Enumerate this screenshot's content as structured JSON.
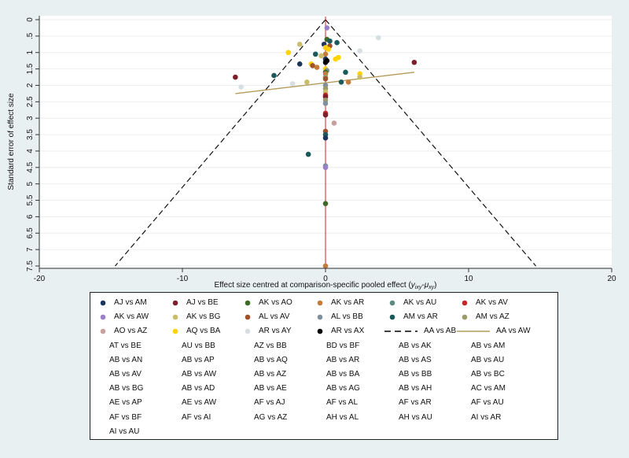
{
  "chart_data": {
    "type": "scatter",
    "title": "",
    "xlabel_prefix": "Effect size centred at comparison-specific pooled effect (",
    "xlabel_math": "y",
    "xlabel_sub1": "ixy",
    "xlabel_minus": "-",
    "xlabel_mu": "μ",
    "xlabel_sub2": "xy",
    "xlabel_suffix": ")",
    "ylabel": "Standard error of effect size",
    "xlim": [
      -20,
      20
    ],
    "ylim": [
      7.5,
      0
    ],
    "x_ticks": [
      -20,
      -10,
      0,
      10,
      20
    ],
    "y_ticks": [
      "0",
      ".5",
      "1",
      "1.5",
      "2",
      "2.5",
      "3",
      "3.5",
      "4",
      "4.5",
      "5",
      "5.5",
      "6",
      "6.5",
      "7",
      "7.5"
    ],
    "grid": "horizontal",
    "reference_line_x": 0,
    "funnel": {
      "apex": [
        0,
        0
      ],
      "base_left": [
        -14.7,
        7.5
      ],
      "base_right": [
        14.7,
        7.5
      ]
    },
    "regression_line": {
      "x": [
        -6.3,
        6.2
      ],
      "y": [
        2.25,
        1.6
      ]
    },
    "points": [
      {
        "x": 0.1,
        "y": 0.25,
        "c": "#9b7fc9"
      },
      {
        "x": 3.7,
        "y": 0.55,
        "c": "#d7dfe2"
      },
      {
        "x": 0.1,
        "y": 0.6,
        "c": "#3d6a25"
      },
      {
        "x": 0.3,
        "y": 0.65,
        "c": "#1a5a5a"
      },
      {
        "x": 0.8,
        "y": 0.7,
        "c": "#1a5a5a"
      },
      {
        "x": -0.1,
        "y": 0.75,
        "c": "#1b365d"
      },
      {
        "x": -1.8,
        "y": 0.75,
        "c": "#c9bd6a"
      },
      {
        "x": 0.3,
        "y": 0.8,
        "c": "#a0522d"
      },
      {
        "x": 0.0,
        "y": 0.85,
        "c": "#ffd200"
      },
      {
        "x": 0.2,
        "y": 0.9,
        "c": "#ffd200"
      },
      {
        "x": 2.4,
        "y": 0.95,
        "c": "#d7dfe2"
      },
      {
        "x": -2.6,
        "y": 1.0,
        "c": "#ffd200"
      },
      {
        "x": -0.7,
        "y": 1.05,
        "c": "#1a5a5a"
      },
      {
        "x": 0.0,
        "y": 1.05,
        "c": "#c47c3a"
      },
      {
        "x": -0.3,
        "y": 1.1,
        "c": "#c9bd6a"
      },
      {
        "x": 0.7,
        "y": 1.2,
        "c": "#ffd200"
      },
      {
        "x": 0.9,
        "y": 1.15,
        "c": "#ffd200"
      },
      {
        "x": 0.0,
        "y": 1.2,
        "c": "#1b365d"
      },
      {
        "x": 0.1,
        "y": 1.25,
        "c": "#000000"
      },
      {
        "x": 6.2,
        "y": 1.3,
        "c": "#7a1f2b"
      },
      {
        "x": 0.0,
        "y": 1.3,
        "c": "#000000"
      },
      {
        "x": -1.8,
        "y": 1.35,
        "c": "#1b365d"
      },
      {
        "x": -1.0,
        "y": 1.35,
        "c": "#ffd200"
      },
      {
        "x": -0.9,
        "y": 1.4,
        "c": "#a0522d"
      },
      {
        "x": -0.6,
        "y": 1.45,
        "c": "#c47c3a"
      },
      {
        "x": 0.0,
        "y": 1.5,
        "c": "#ffd200"
      },
      {
        "x": 0.1,
        "y": 1.55,
        "c": "#7e8f9e"
      },
      {
        "x": 1.4,
        "y": 1.6,
        "c": "#1a5a5a"
      },
      {
        "x": 0.0,
        "y": 1.6,
        "c": "#3d6a25"
      },
      {
        "x": 0.0,
        "y": 1.65,
        "c": "#c47c3a"
      },
      {
        "x": 2.4,
        "y": 1.65,
        "c": "#ffd200"
      },
      {
        "x": -3.6,
        "y": 1.7,
        "c": "#1a5a5a"
      },
      {
        "x": -6.3,
        "y": 1.75,
        "c": "#7a1f2b"
      },
      {
        "x": 0.0,
        "y": 1.75,
        "c": "#9b9b6a"
      },
      {
        "x": 2.4,
        "y": 1.75,
        "c": "#c9bd6a"
      },
      {
        "x": 0.0,
        "y": 1.8,
        "c": "#a0522d"
      },
      {
        "x": -1.3,
        "y": 1.9,
        "c": "#c9bd6a"
      },
      {
        "x": 1.1,
        "y": 1.9,
        "c": "#1a5a5a"
      },
      {
        "x": 1.6,
        "y": 1.9,
        "c": "#c47c3a"
      },
      {
        "x": -2.3,
        "y": 1.95,
        "c": "#d7dfe2"
      },
      {
        "x": -5.9,
        "y": 2.05,
        "c": "#d7dfe2"
      },
      {
        "x": 0.0,
        "y": 2.0,
        "c": "#7e8f9e"
      },
      {
        "x": 0.0,
        "y": 2.1,
        "c": "#9b9b6a"
      },
      {
        "x": 0.0,
        "y": 2.2,
        "c": "#c9bd6a"
      },
      {
        "x": 0.0,
        "y": 2.3,
        "c": "#c62828"
      },
      {
        "x": 0.0,
        "y": 2.35,
        "c": "#7a1f2b"
      },
      {
        "x": 0.0,
        "y": 2.45,
        "c": "#9b9b6a"
      },
      {
        "x": 0.0,
        "y": 2.55,
        "c": "#7e8f9e"
      },
      {
        "x": 0.0,
        "y": 2.85,
        "c": "#c62828"
      },
      {
        "x": 0.0,
        "y": 2.9,
        "c": "#7a1f2b"
      },
      {
        "x": 0.6,
        "y": 3.15,
        "c": "#c9a0a0"
      },
      {
        "x": 0.0,
        "y": 3.4,
        "c": "#a0522d"
      },
      {
        "x": 0.0,
        "y": 3.5,
        "c": "#1a5a5a"
      },
      {
        "x": 0.0,
        "y": 3.6,
        "c": "#1b365d"
      },
      {
        "x": -1.2,
        "y": 4.1,
        "c": "#1a5a5a"
      },
      {
        "x": 0.0,
        "y": 4.45,
        "c": "#7e8f9e"
      },
      {
        "x": 0.0,
        "y": 4.5,
        "c": "#9b7fc9"
      },
      {
        "x": 0.0,
        "y": 5.6,
        "c": "#3d6a25"
      },
      {
        "x": 0.0,
        "y": 7.5,
        "c": "#c47c3a"
      }
    ],
    "legend": [
      {
        "label": "AJ vs AM",
        "kind": "dot",
        "color": "#1b365d"
      },
      {
        "label": "AJ vs BE",
        "kind": "dot",
        "color": "#7a1f2b"
      },
      {
        "label": "AK vs AO",
        "kind": "dot",
        "color": "#3d6a25"
      },
      {
        "label": "AK vs AR",
        "kind": "dot",
        "color": "#c47c3a"
      },
      {
        "label": "AK vs AU",
        "kind": "dot",
        "color": "#5f8a82"
      },
      {
        "label": "AK vs AV",
        "kind": "dot",
        "color": "#c62828"
      },
      {
        "label": "AK vs AW",
        "kind": "dot",
        "color": "#9b7fc9"
      },
      {
        "label": "AK vs BG",
        "kind": "dot",
        "color": "#c9bd6a"
      },
      {
        "label": "AL vs AV",
        "kind": "dot",
        "color": "#a0522d"
      },
      {
        "label": "AL vs BB",
        "kind": "dot",
        "color": "#7e8f9e"
      },
      {
        "label": "AM vs AR",
        "kind": "dot",
        "color": "#1a5a5a"
      },
      {
        "label": "AM vs AZ",
        "kind": "dot",
        "color": "#9b9b6a"
      },
      {
        "label": "AO vs AZ",
        "kind": "dot",
        "color": "#c9a0a0"
      },
      {
        "label": "AQ vs BA",
        "kind": "dot",
        "color": "#ffd200"
      },
      {
        "label": "AR vs AY",
        "kind": "dot",
        "color": "#d7dfe2"
      },
      {
        "label": "AR vs AX",
        "kind": "dot",
        "color": "#000000"
      },
      {
        "label": "AA vs AB",
        "kind": "dash",
        "color": "#000000"
      },
      {
        "label": "AA vs AW",
        "kind": "line",
        "color": "#b39b5a"
      },
      {
        "label": "AT vs BE",
        "kind": "none"
      },
      {
        "label": "AU vs BB",
        "kind": "none"
      },
      {
        "label": "AZ vs BB",
        "kind": "none"
      },
      {
        "label": "BD vs BF",
        "kind": "none"
      },
      {
        "label": "AB vs AK",
        "kind": "none"
      },
      {
        "label": "AB vs AM",
        "kind": "none"
      },
      {
        "label": "AB vs AN",
        "kind": "none"
      },
      {
        "label": "AB vs AP",
        "kind": "none"
      },
      {
        "label": "AB vs AQ",
        "kind": "none"
      },
      {
        "label": "AB vs AR",
        "kind": "none"
      },
      {
        "label": "AB vs AS",
        "kind": "none"
      },
      {
        "label": "AB vs AU",
        "kind": "none"
      },
      {
        "label": "AB vs AV",
        "kind": "none"
      },
      {
        "label": "AB vs AW",
        "kind": "none"
      },
      {
        "label": "AB vs AZ",
        "kind": "none"
      },
      {
        "label": "AB vs BA",
        "kind": "none"
      },
      {
        "label": "AB vs BB",
        "kind": "none"
      },
      {
        "label": "AB vs BC",
        "kind": "none"
      },
      {
        "label": "AB vs BG",
        "kind": "none"
      },
      {
        "label": "AB vs AD",
        "kind": "none"
      },
      {
        "label": "AB vs AE",
        "kind": "none"
      },
      {
        "label": "AB vs AG",
        "kind": "none"
      },
      {
        "label": "AB vs AH",
        "kind": "none"
      },
      {
        "label": "AC vs AM",
        "kind": "none"
      },
      {
        "label": "AE vs AP",
        "kind": "none"
      },
      {
        "label": "AE vs AW",
        "kind": "none"
      },
      {
        "label": "AF vs AJ",
        "kind": "none"
      },
      {
        "label": "AF vs AL",
        "kind": "none"
      },
      {
        "label": "AF vs AR",
        "kind": "none"
      },
      {
        "label": "AF vs AU",
        "kind": "none"
      },
      {
        "label": "AF vs BF",
        "kind": "none"
      },
      {
        "label": "AF vs AI",
        "kind": "none"
      },
      {
        "label": "AG vs AZ",
        "kind": "none"
      },
      {
        "label": "AH vs AL",
        "kind": "none"
      },
      {
        "label": "AH vs AU",
        "kind": "none"
      },
      {
        "label": "AI vs AR",
        "kind": "none"
      },
      {
        "label": "AI vs AU",
        "kind": "none"
      }
    ]
  }
}
